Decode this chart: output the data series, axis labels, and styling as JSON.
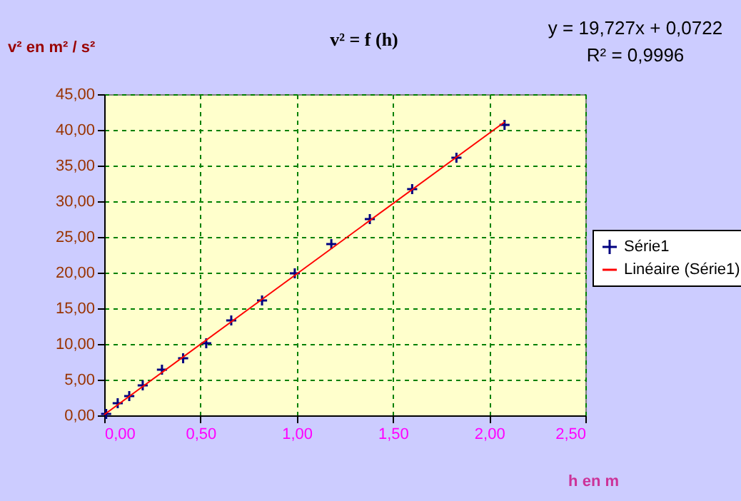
{
  "chart_data": {
    "type": "scatter",
    "title": "v² = f (h)",
    "xlabel": "h en m",
    "ylabel": "v² en m² / s²",
    "xlim": [
      0,
      2.5
    ],
    "ylim": [
      0,
      45
    ],
    "xticks": [
      {
        "value": 0,
        "label": "0,00"
      },
      {
        "value": 0.5,
        "label": "0,50"
      },
      {
        "value": 1,
        "label": "1,00"
      },
      {
        "value": 1.5,
        "label": "1,50"
      },
      {
        "value": 2,
        "label": "2,00"
      },
      {
        "value": 2.5,
        "label": "2,50"
      }
    ],
    "yticks": [
      {
        "value": 0,
        "label": "0,00"
      },
      {
        "value": 5,
        "label": "5,00"
      },
      {
        "value": 10,
        "label": "10,00"
      },
      {
        "value": 15,
        "label": "15,00"
      },
      {
        "value": 20,
        "label": "20,00"
      },
      {
        "value": 25,
        "label": "25,00"
      },
      {
        "value": 30,
        "label": "30,00"
      },
      {
        "value": 35,
        "label": "35,00"
      },
      {
        "value": 40,
        "label": "40,00"
      },
      {
        "value": 45,
        "label": "45,00"
      }
    ],
    "grid": true,
    "legend": "right",
    "annotations": [
      "y = 19,727x + 0,0722",
      "R² = 0,9996"
    ],
    "series": [
      {
        "name": "Série1",
        "marker": "cross",
        "color": "#000080",
        "x": [
          0.01,
          0.07,
          0.13,
          0.2,
          0.3,
          0.41,
          0.53,
          0.66,
          0.82,
          0.99,
          1.18,
          1.38,
          1.6,
          1.83,
          2.08
        ],
        "values": [
          0.2,
          1.7,
          2.7,
          4.2,
          6.4,
          8.0,
          10.1,
          13.3,
          16.1,
          19.9,
          24.0,
          27.5,
          31.7,
          36.1,
          40.7
        ]
      },
      {
        "name": "Linéaire (Série1)",
        "type": "line",
        "color": "#ff0000",
        "line_style": "solid",
        "x": [
          0,
          2.08
        ],
        "values": [
          0.1,
          41.1
        ]
      }
    ]
  }
}
